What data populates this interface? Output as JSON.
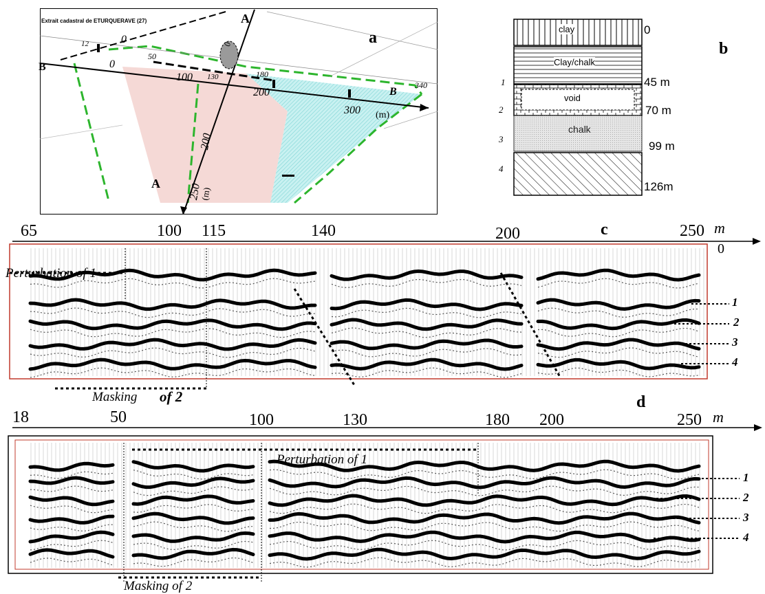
{
  "panel_a": {
    "letter": "a",
    "header": "Extrait cadastral de ETURQUERAVE (27)",
    "profile_a_label": "A",
    "profile_b_label": "B",
    "b_ticks": [
      "0",
      "12",
      "0",
      "50",
      "100",
      "130",
      "180",
      "200",
      "300",
      "340"
    ],
    "a_ticks": [
      "0",
      "100",
      "200",
      "250"
    ],
    "unit": "(m)"
  },
  "panel_b": {
    "letter": "b",
    "layers": [
      {
        "name": "clay",
        "depth": "0",
        "num": ""
      },
      {
        "name": "Clay/chalk",
        "depth": "45 m",
        "num": "1"
      },
      {
        "name": "void",
        "depth": "70 m",
        "num": "2"
      },
      {
        "name": "chalk",
        "depth": "99 m",
        "num": "3"
      },
      {
        "name": "",
        "depth": "126m",
        "num": "4"
      }
    ]
  },
  "panel_c": {
    "letter": "c",
    "ticks": [
      "65",
      "100",
      "115",
      "140",
      "200",
      "250"
    ],
    "unit": "m",
    "zero": "0",
    "perturbation_label": "Perturbation of 1",
    "masking_label_a": "Masking",
    "masking_label_b": "of 2",
    "reflectors": [
      "1",
      "2",
      "3",
      "4"
    ]
  },
  "panel_d": {
    "letter": "d",
    "ticks": [
      "18",
      "50",
      "100",
      "130",
      "180",
      "200",
      "250"
    ],
    "unit": "m",
    "perturbation_label": "Perturbation of 1",
    "masking_label": "Masking of 2",
    "reflectors": [
      "1",
      "2",
      "3",
      "4"
    ]
  }
}
